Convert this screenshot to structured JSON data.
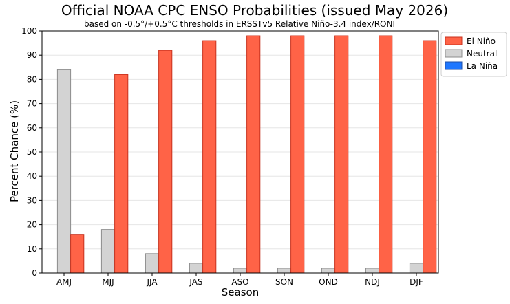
{
  "chart_data": {
    "type": "bar",
    "title": "Official NOAA CPC ENSO Probabilities (issued May 2026)",
    "subtitle": "based on -0.5°/+0.5°C thresholds in ERSSTv5 Relative Niño-3.4 index/RONI",
    "xlabel": "Season",
    "ylabel": "Percent Chance (%)",
    "ylim": [
      0,
      100
    ],
    "yticks": [
      0,
      10,
      20,
      30,
      40,
      50,
      60,
      70,
      80,
      90,
      100
    ],
    "grid": true,
    "legend_position": "outside-right-top",
    "categories": [
      "AMJ",
      "MJJ",
      "JJA",
      "JAS",
      "ASO",
      "SON",
      "OND",
      "NDJ",
      "DJF"
    ],
    "series": [
      {
        "name": "La Niña",
        "color": "#1f77ff",
        "edge": "#1d4fa8",
        "values": [
          0,
          0,
          0,
          0,
          0,
          0,
          0,
          0,
          0
        ]
      },
      {
        "name": "Neutral",
        "color": "#d3d3d3",
        "edge": "#8c8c8c",
        "values": [
          84,
          18,
          8,
          4,
          2,
          2,
          2,
          2,
          4
        ]
      },
      {
        "name": "El Niño",
        "color": "#ff6347",
        "edge": "#c8321e",
        "values": [
          16,
          82,
          92,
          96,
          98,
          98,
          98,
          98,
          96
        ]
      }
    ],
    "legend_order": [
      "El Niño",
      "Neutral",
      "La Niña"
    ]
  }
}
